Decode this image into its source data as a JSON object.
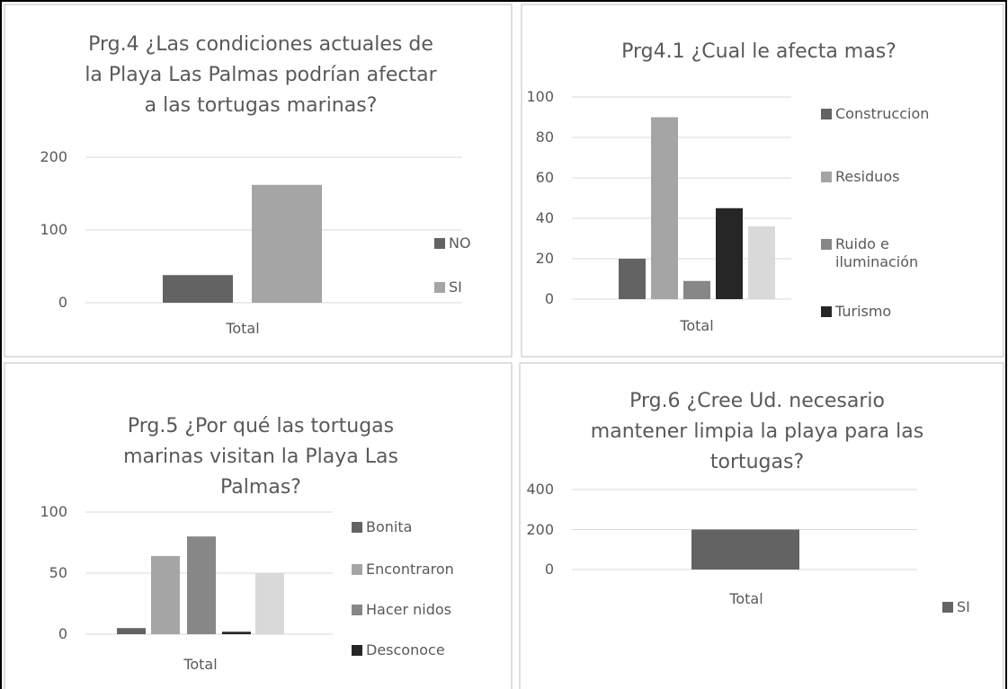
{
  "chart_data": [
    {
      "type": "bar",
      "title": [
        "Prg.4 ¿Las condiciones actuales de",
        "la Playa Las Palmas podrían afectar",
        "a las tortugas marinas?"
      ],
      "categories": [
        "Total"
      ],
      "series": [
        {
          "name": "NO",
          "color": "#636363",
          "values": [
            38
          ]
        },
        {
          "name": "SI",
          "color": "#a5a5a5",
          "values": [
            162
          ]
        }
      ],
      "ylim": [
        0,
        200
      ],
      "yticks": [
        0,
        100,
        200
      ],
      "grid": true
    },
    {
      "type": "bar",
      "title": [
        "Prg4.1 ¿Cual le afecta mas?"
      ],
      "categories": [
        "Total"
      ],
      "series": [
        {
          "name": "Construccion",
          "color": "#636363",
          "values": [
            20
          ]
        },
        {
          "name": "Residuos",
          "color": "#a5a5a5",
          "values": [
            90
          ]
        },
        {
          "name": "Ruido e iluminación",
          "color": "#878787",
          "values": [
            9
          ]
        },
        {
          "name": "Turismo",
          "color": "#262626",
          "values": [
            45
          ]
        },
        {
          "color": "#d9d9d9",
          "values": [
            36
          ]
        }
      ],
      "ylim": [
        0,
        100
      ],
      "yticks": [
        0,
        20,
        40,
        60,
        80,
        100
      ],
      "grid": true
    },
    {
      "type": "bar",
      "title": [
        "Prg.5 ¿Por qué las tortugas",
        "marinas visitan la Playa Las",
        "Palmas?"
      ],
      "categories": [
        "Total"
      ],
      "series": [
        {
          "name": "Bonita",
          "color": "#636363",
          "values": [
            5
          ]
        },
        {
          "name": "Encontraron",
          "color": "#a5a5a5",
          "values": [
            64
          ]
        },
        {
          "name": "Hacer nidos",
          "color": "#878787",
          "values": [
            80
          ]
        },
        {
          "name": "Desconoce",
          "color": "#262626",
          "values": [
            2
          ]
        },
        {
          "color": "#d9d9d9",
          "values": [
            50
          ]
        }
      ],
      "ylim": [
        0,
        100
      ],
      "yticks": [
        0,
        50,
        100
      ],
      "grid": true
    },
    {
      "type": "bar",
      "title": [
        "Prg.6 ¿Cree Ud. necesario",
        "mantener limpia la playa para las",
        "tortugas?"
      ],
      "categories": [
        "Total"
      ],
      "series": [
        {
          "name": "SI",
          "color": "#636363",
          "values": [
            200
          ]
        }
      ],
      "ylim": [
        0,
        400
      ],
      "yticks": [
        0,
        200,
        400
      ],
      "grid": true
    }
  ]
}
